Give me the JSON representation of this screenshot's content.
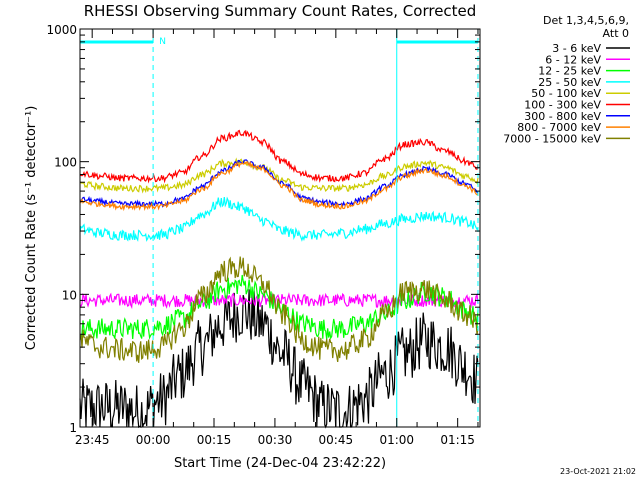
{
  "chart_data": {
    "type": "line",
    "title": "RHESSI Observing Summary Count Rates, Corrected",
    "xlabel": "Start Time (24-Dec-04 23:42:22)",
    "ylabel": "Corrected Count Rate (s⁻¹ detector⁻¹)",
    "yscale": "log",
    "ylim": [
      1,
      1000
    ],
    "xlim_minutes_from_start": [
      -3.0,
      95.5
    ],
    "x_ticks": [
      {
        "label": "23:45",
        "minutes": 0
      },
      {
        "label": "00:00",
        "minutes": 15
      },
      {
        "label": "00:15",
        "minutes": 30
      },
      {
        "label": "00:30",
        "minutes": 45
      },
      {
        "label": "00:45",
        "minutes": 60
      },
      {
        "label": "01:00",
        "minutes": 75
      },
      {
        "label": "01:15",
        "minutes": 90
      }
    ],
    "y_ticks": [
      {
        "label": "1",
        "value": 1
      },
      {
        "label": "10",
        "value": 10
      },
      {
        "label": "100",
        "value": 100
      },
      {
        "label": "1000",
        "value": 1000
      }
    ],
    "legend": {
      "header_line1": "Det 1,3,4,5,6,9,",
      "header_line2": "Att 0",
      "placement": "outside-right"
    },
    "annotations": {
      "night_bars": [
        [
          -3.0,
          15.0
        ],
        [
          75.0,
          95.0
        ]
      ],
      "night_color": "#00ffff",
      "saa_marker": "N",
      "saa_minutes": 16.5,
      "dashed_lines_minutes": [
        15.0,
        95.0
      ],
      "solid_lines_minutes": [
        -3.0,
        75.0
      ]
    },
    "series": [
      {
        "name": "3 - 6 keV",
        "color": "#000000",
        "x": [
          -3,
          2,
          7,
          12,
          17,
          22,
          27,
          32,
          37,
          42,
          47,
          52,
          57,
          62,
          67,
          72,
          77,
          82,
          87,
          92,
          95
        ],
        "values": [
          1.4,
          1.4,
          1.4,
          1.3,
          1.6,
          2.5,
          4.0,
          6.0,
          7.5,
          6.0,
          3.5,
          2.0,
          1.4,
          1.3,
          1.6,
          2.5,
          3.5,
          4.5,
          4.0,
          2.8,
          2.2
        ]
      },
      {
        "name": "6 - 12 keV",
        "color": "#ff00ff",
        "x": [
          -3,
          2,
          7,
          12,
          17,
          22,
          27,
          32,
          37,
          42,
          47,
          52,
          57,
          62,
          67,
          72,
          77,
          82,
          87,
          92,
          95
        ],
        "values": [
          9.0,
          9.0,
          9.0,
          9.0,
          9.0,
          9.0,
          9.0,
          9.0,
          9.0,
          9.0,
          9.0,
          9.0,
          9.0,
          9.0,
          9.0,
          9.0,
          9.0,
          9.0,
          9.0,
          9.0,
          9.0
        ]
      },
      {
        "name": "12 - 25 keV",
        "color": "#00ff00",
        "x": [
          -3,
          2,
          7,
          12,
          17,
          22,
          27,
          32,
          37,
          42,
          47,
          52,
          57,
          62,
          67,
          72,
          77,
          82,
          87,
          92,
          95
        ],
        "values": [
          5.5,
          5.5,
          5.5,
          5.5,
          5.8,
          6.5,
          8.5,
          11.0,
          12.0,
          10.0,
          7.5,
          6.0,
          5.5,
          5.5,
          6.0,
          7.0,
          9.0,
          10.5,
          9.5,
          7.5,
          6.5
        ]
      },
      {
        "name": "25 - 50 keV",
        "color": "#00ffff",
        "x": [
          -3,
          2,
          7,
          12,
          17,
          22,
          27,
          32,
          37,
          42,
          47,
          52,
          57,
          62,
          67,
          72,
          77,
          82,
          87,
          92,
          95
        ],
        "values": [
          31,
          29,
          28,
          28,
          28,
          31,
          40,
          50,
          45,
          36,
          30,
          28,
          28,
          29,
          31,
          34,
          37,
          39,
          38,
          35,
          32
        ]
      },
      {
        "name": "50 - 100 keV",
        "color": "#cccc00",
        "x": [
          -3,
          2,
          7,
          12,
          17,
          22,
          27,
          32,
          37,
          42,
          47,
          52,
          57,
          62,
          67,
          72,
          77,
          82,
          87,
          92,
          95
        ],
        "values": [
          68,
          65,
          63,
          63,
          63,
          66,
          80,
          97,
          100,
          90,
          72,
          64,
          63,
          63,
          67,
          78,
          92,
          98,
          90,
          78,
          72
        ]
      },
      {
        "name": "100 - 300 keV",
        "color": "#ff0000",
        "x": [
          -3,
          2,
          7,
          12,
          17,
          22,
          27,
          32,
          37,
          42,
          47,
          52,
          57,
          62,
          67,
          72,
          77,
          82,
          87,
          92,
          95
        ],
        "values": [
          82,
          78,
          75,
          75,
          75,
          82,
          110,
          150,
          165,
          140,
          100,
          80,
          75,
          75,
          82,
          105,
          135,
          140,
          120,
          100,
          90
        ]
      },
      {
        "name": "300 - 800 keV",
        "color": "#0000ff",
        "x": [
          -3,
          2,
          7,
          12,
          17,
          22,
          27,
          32,
          37,
          42,
          47,
          52,
          57,
          62,
          67,
          72,
          77,
          82,
          87,
          92,
          95
        ],
        "values": [
          52,
          50,
          48,
          48,
          48,
          52,
          65,
          85,
          100,
          90,
          68,
          53,
          49,
          48,
          52,
          65,
          80,
          88,
          80,
          68,
          60
        ]
      },
      {
        "name": "800 - 7000 keV",
        "color": "#ff8000",
        "x": [
          -3,
          2,
          7,
          12,
          17,
          22,
          27,
          32,
          37,
          42,
          47,
          52,
          57,
          62,
          67,
          72,
          77,
          82,
          87,
          92,
          95
        ],
        "values": [
          50,
          48,
          46,
          46,
          46,
          50,
          62,
          82,
          97,
          88,
          66,
          51,
          47,
          46,
          50,
          62,
          78,
          86,
          78,
          66,
          58
        ]
      },
      {
        "name": "7000 - 15000 keV",
        "color": "#808000",
        "x": [
          -3,
          2,
          7,
          12,
          17,
          22,
          27,
          32,
          37,
          42,
          47,
          52,
          57,
          62,
          67,
          72,
          77,
          82,
          87,
          92,
          95
        ],
        "values": [
          4.5,
          4.0,
          3.8,
          3.7,
          4.0,
          5.5,
          9.5,
          15.0,
          16.0,
          12.0,
          7.0,
          4.5,
          3.8,
          3.8,
          4.5,
          7.0,
          10.5,
          11.0,
          9.0,
          7.0,
          6.0
        ]
      }
    ]
  },
  "footer": {
    "timestamp": "23-Oct-2021 21:02"
  }
}
